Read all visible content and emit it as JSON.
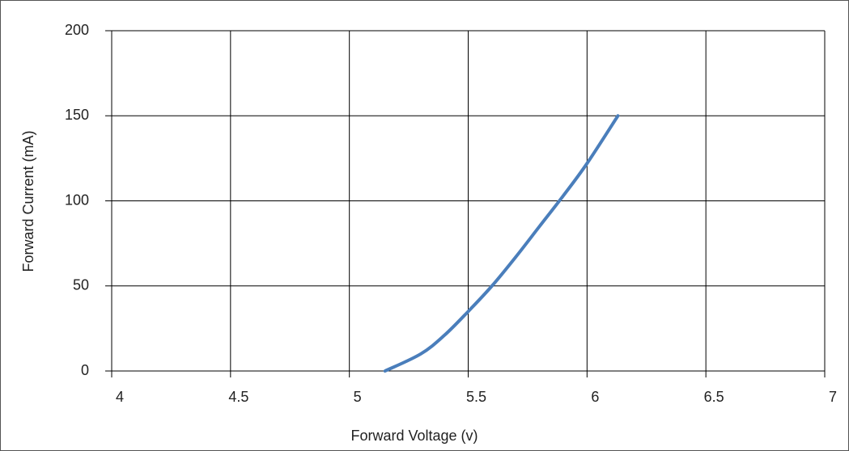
{
  "chart_data": {
    "type": "line",
    "x_label": "Forward Voltage (v)",
    "y_label": "Forward Current  (mA)",
    "x": [
      5.15,
      5.3,
      5.4,
      5.5,
      5.6,
      5.7,
      5.8,
      5.9,
      6.0,
      6.13
    ],
    "series": [
      {
        "color": "#4a7ebb",
        "values": [
          0,
          10,
          21,
          35,
          50,
          67,
          85,
          103,
          122,
          150
        ]
      }
    ],
    "xlim": [
      4,
      7
    ],
    "xticks": [
      4,
      4.5,
      5,
      5.5,
      6,
      6.5,
      7
    ],
    "ylim": [
      0,
      200
    ],
    "yticks": [
      0,
      50,
      100,
      150,
      200
    ],
    "grid": true
  }
}
